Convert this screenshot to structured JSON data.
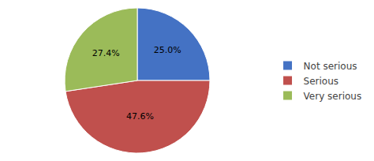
{
  "chart_data": {
    "type": "pie",
    "categories": [
      "Not serious",
      "Serious",
      "Very serious"
    ],
    "values": [
      25.0,
      47.6,
      27.4
    ],
    "value_labels": [
      "25.0%",
      "47.6%",
      "27.4%"
    ],
    "colors": [
      "#4472C4",
      "#C0504D",
      "#9BBB59"
    ],
    "legend": "right"
  }
}
